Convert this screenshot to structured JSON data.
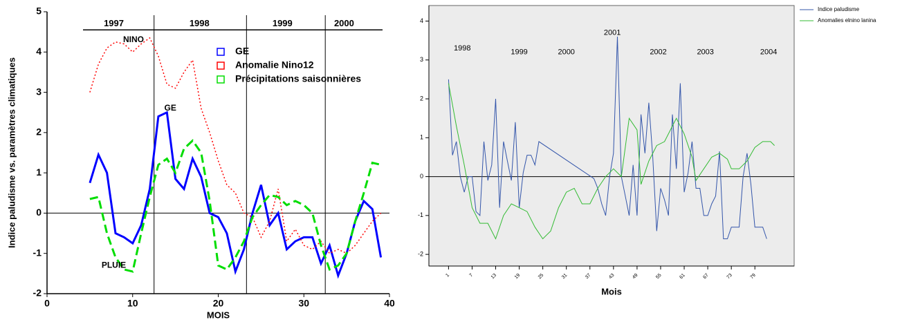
{
  "chart_data": [
    {
      "type": "line",
      "x_label": "MOIS",
      "y_label": "Indice paludisme vs. paramètres climatiques",
      "xlim": [
        0,
        40
      ],
      "xticks": [
        0,
        10,
        20,
        30,
        40
      ],
      "ylim": [
        -2,
        5
      ],
      "yticks": [
        -2,
        -1,
        0,
        1,
        2,
        3,
        4,
        5
      ],
      "hline": 0,
      "legend": "upper right",
      "x": [
        5,
        6,
        7,
        8,
        9,
        10,
        11,
        12,
        13,
        14,
        15,
        16,
        17,
        18,
        19,
        20,
        21,
        22,
        23,
        24,
        25,
        26,
        27,
        28,
        29,
        30,
        31,
        32,
        33,
        34,
        35,
        36,
        37,
        38,
        39
      ],
      "series": [
        {
          "name": "GE",
          "color": "#0000ff",
          "dash": "solid",
          "values": [
            0.75,
            1.45,
            1.0,
            -0.5,
            -0.6,
            -0.75,
            -0.3,
            0.6,
            2.4,
            2.5,
            0.85,
            0.6,
            1.35,
            0.9,
            0.0,
            -0.1,
            -0.5,
            -1.45,
            -0.9,
            0.0,
            0.7,
            -0.3,
            0.0,
            -0.9,
            -0.7,
            -0.6,
            -0.6,
            -1.25,
            -0.8,
            -1.55,
            -1.0,
            -0.2,
            0.3,
            0.1,
            -1.1
          ]
        },
        {
          "name": "Anomalie Nino12",
          "color": "#ff0000",
          "dash": "dotted",
          "values": [
            3.0,
            3.7,
            4.1,
            4.25,
            4.2,
            4.0,
            4.2,
            4.35,
            3.9,
            3.2,
            3.1,
            3.5,
            3.8,
            2.6,
            2.0,
            1.3,
            0.7,
            0.5,
            0.0,
            -0.1,
            -0.6,
            -0.2,
            0.6,
            -0.7,
            -0.4,
            -0.8,
            -0.9,
            -0.7,
            -1.0,
            -0.9,
            -1.0,
            -0.8,
            -0.5,
            -0.2,
            0.0
          ]
        },
        {
          "name": "Précipitations saisonnières",
          "color": "#00dd00",
          "dash": "dashed",
          "values": [
            0.35,
            0.4,
            -0.5,
            -1.1,
            -1.4,
            -1.45,
            -0.5,
            0.4,
            1.2,
            1.35,
            1.0,
            1.6,
            1.8,
            1.5,
            0.3,
            -1.3,
            -1.4,
            -1.1,
            -0.7,
            -0.1,
            0.2,
            0.45,
            0.4,
            0.2,
            0.3,
            0.2,
            0.0,
            -0.8,
            -1.4,
            -1.3,
            -1.0,
            -0.2,
            0.5,
            1.25,
            1.2
          ]
        }
      ],
      "separators": [
        12.5,
        23.3,
        32.5
      ],
      "periods": [
        {
          "text": "1997",
          "x": 7.8,
          "y": 4.7
        },
        {
          "text": "1998",
          "x": 17.8,
          "y": 4.7
        },
        {
          "text": "1999",
          "x": 27.5,
          "y": 4.7
        },
        {
          "text": "2000",
          "x": 34.7,
          "y": 4.7
        }
      ],
      "annotations": [
        {
          "text": "NINO",
          "x": 10.1,
          "y": 4.3
        },
        {
          "text": "GE",
          "x": 14.4,
          "y": 2.6
        },
        {
          "text": "PLUIE",
          "x": 7.8,
          "y": -1.3
        }
      ]
    },
    {
      "type": "line",
      "x_label": "Mois",
      "xlim": [
        -4,
        89
      ],
      "xticks": [
        1,
        7,
        13,
        19,
        25,
        31,
        37,
        43,
        49,
        55,
        61,
        67,
        73,
        79
      ],
      "ylim": [
        -2.3,
        4.4
      ],
      "yticks": [
        -2,
        -1,
        0,
        1,
        2,
        3,
        4
      ],
      "hline": 0,
      "legend": "outside right",
      "background": "#ececec",
      "series": [
        {
          "name": "Indice paludisme",
          "color": "#3355aa",
          "dash": "solid",
          "x": [
            1,
            2,
            3,
            4,
            5,
            6,
            7,
            8,
            9,
            10,
            11,
            12,
            13,
            14,
            15,
            16,
            17,
            18,
            19,
            20,
            21,
            22,
            23,
            24,
            38,
            39,
            40,
            41,
            42,
            43,
            44,
            45,
            46,
            47,
            48,
            49,
            50,
            51,
            52,
            53,
            54,
            55,
            56,
            57,
            58,
            59,
            60,
            61,
            62,
            63,
            64,
            65,
            66,
            67,
            68,
            69,
            70,
            71,
            72,
            73,
            74,
            75,
            76,
            77,
            78,
            79,
            80,
            81,
            82
          ],
          "values": [
            2.5,
            0.55,
            0.9,
            0.0,
            -0.4,
            0.0,
            0.0,
            -0.9,
            -1.0,
            0.9,
            -0.1,
            0.3,
            2.0,
            -0.8,
            0.9,
            0.4,
            -0.1,
            1.4,
            -0.8,
            0.1,
            0.55,
            0.55,
            0.3,
            0.9,
            -0.05,
            -0.3,
            -0.7,
            -1.0,
            0.0,
            0.6,
            3.6,
            0.0,
            -0.5,
            -1.0,
            0.3,
            -1.0,
            1.6,
            0.6,
            1.9,
            0.5,
            -1.4,
            -0.3,
            -0.6,
            -1.0,
            1.6,
            0.2,
            2.4,
            -0.4,
            0.1,
            0.9,
            -0.3,
            -0.3,
            -1.0,
            -1.0,
            -0.7,
            -0.5,
            0.65,
            -1.6,
            -1.6,
            -1.3,
            -1.3,
            -1.3,
            0.0,
            0.6,
            -0.2,
            -1.3,
            -1.3,
            -1.3,
            -1.6
          ]
        },
        {
          "name": "Anomalies elnino lanina",
          "color": "#33bb33",
          "dash": "solid",
          "x": [
            1,
            3,
            5,
            7,
            9,
            11,
            13,
            15,
            17,
            19,
            21,
            23,
            25,
            27,
            29,
            31,
            33,
            35,
            37,
            39,
            41,
            43,
            45,
            47,
            49,
            50,
            52,
            54,
            56,
            58,
            59,
            61,
            63,
            64,
            66,
            68,
            70,
            72,
            73,
            75,
            77,
            79,
            81,
            83,
            84
          ],
          "values": [
            2.4,
            1.3,
            0.3,
            -0.8,
            -1.2,
            -1.2,
            -1.6,
            -1.0,
            -0.7,
            -0.8,
            -0.9,
            -1.3,
            -1.6,
            -1.4,
            -0.8,
            -0.4,
            -0.3,
            -0.7,
            -0.7,
            -0.3,
            0.0,
            0.2,
            0.0,
            1.5,
            1.2,
            -0.2,
            0.4,
            0.8,
            0.9,
            1.3,
            1.5,
            1.1,
            0.5,
            -0.1,
            0.2,
            0.5,
            0.6,
            0.45,
            0.2,
            0.2,
            0.4,
            0.75,
            0.9,
            0.9,
            0.8
          ]
        }
      ],
      "annotations": [
        {
          "text": "1998",
          "x": 4.5,
          "y": 3.3
        },
        {
          "text": "1999",
          "x": 19,
          "y": 3.2
        },
        {
          "text": "2000",
          "x": 31,
          "y": 3.2
        },
        {
          "text": "2001",
          "x": 42.7,
          "y": 3.7
        },
        {
          "text": "2002",
          "x": 54.4,
          "y": 3.2
        },
        {
          "text": "2003",
          "x": 66.4,
          "y": 3.2
        },
        {
          "text": "2004",
          "x": 82.5,
          "y": 3.2
        }
      ]
    }
  ]
}
